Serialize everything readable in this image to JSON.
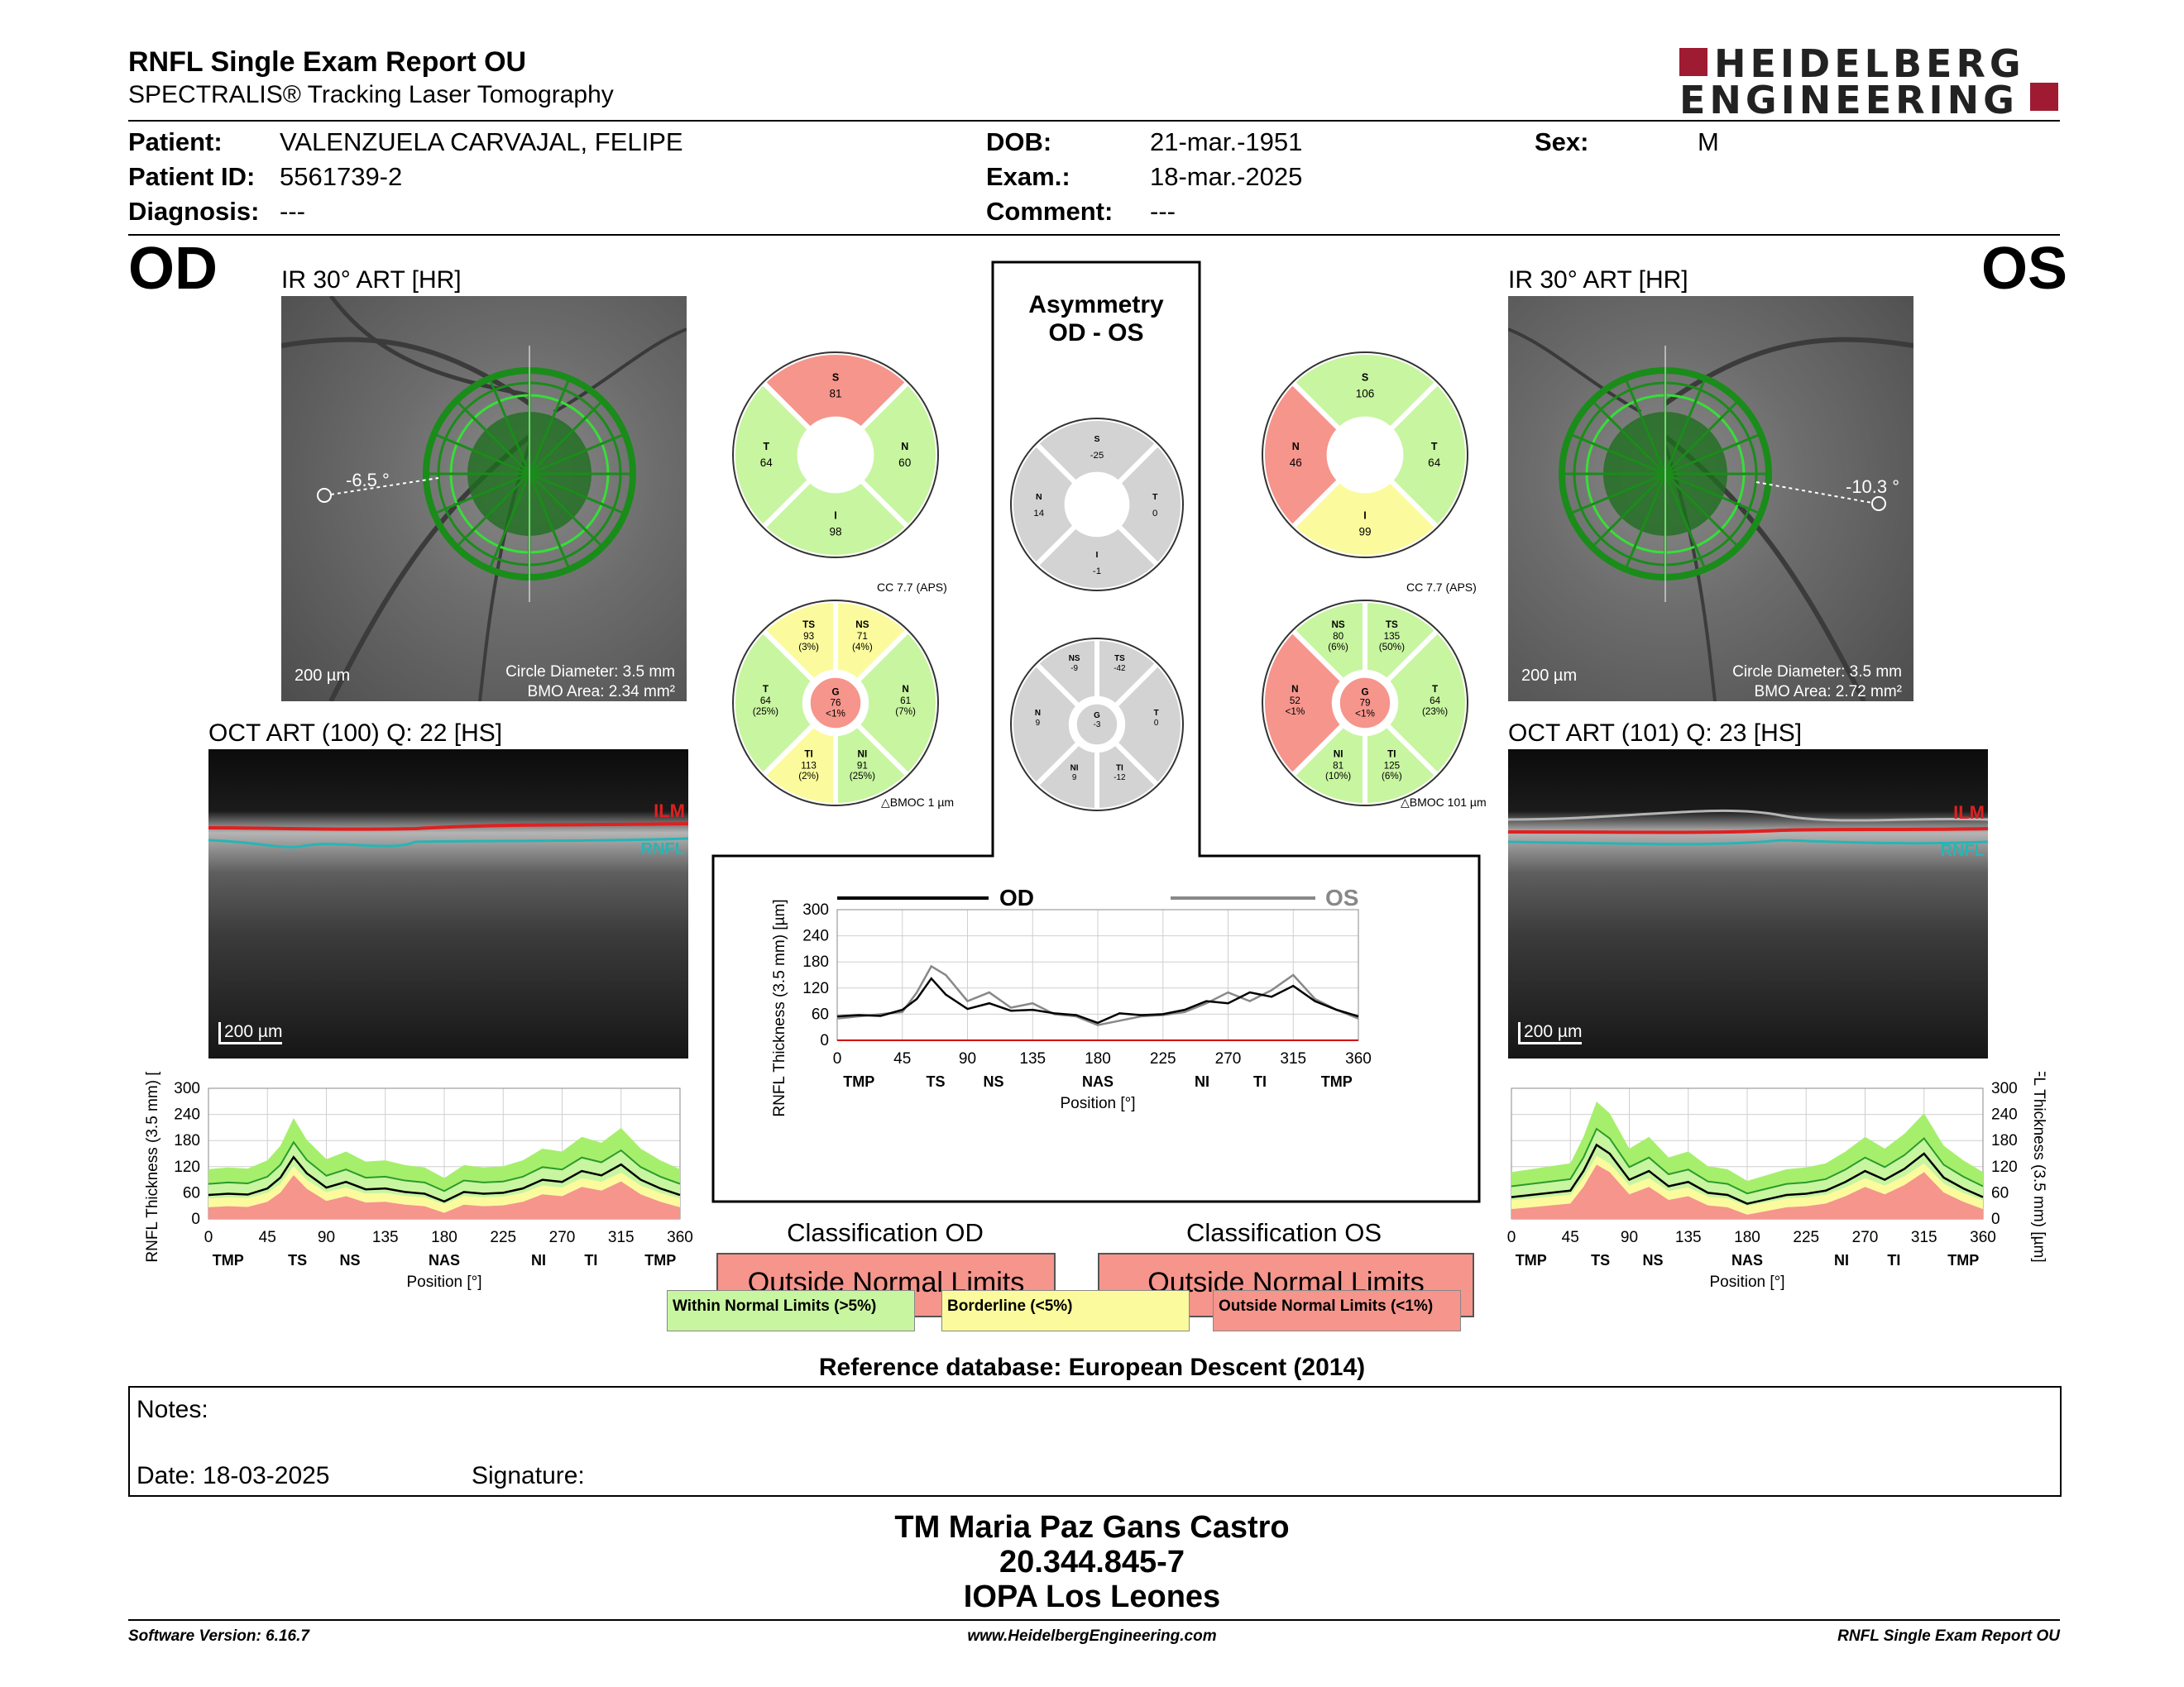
{
  "header": {
    "title": "RNFL Single Exam Report OU",
    "subtitle": "SPECTRALIS® Tracking Laser Tomography",
    "logo_line1": "HEIDELBERG",
    "logo_line2": "ENGINEERING"
  },
  "patient": {
    "patient_label": "Patient:",
    "patient_value": "VALENZUELA CARVAJAL, FELIPE",
    "id_label": "Patient ID:",
    "id_value": "5561739-2",
    "diagnosis_label": "Diagnosis:",
    "diagnosis_value": "---",
    "dob_label": "DOB:",
    "dob_value": "21-mar.-1951",
    "exam_label": "Exam.:",
    "exam_value": "18-mar.-2025",
    "comment_label": "Comment:",
    "comment_value": "---",
    "sex_label": "Sex:",
    "sex_value": "M"
  },
  "od": {
    "eye": "OD",
    "ir_title": "IR 30° ART [HR]",
    "angle": "-6.5 °",
    "scale": "200 µm",
    "circle_diameter": "Circle Diameter: 3.5 mm",
    "bmo_area": "BMO Area: 2.34 mm²",
    "oct_title": "OCT ART (100) Q: 22 [HS]",
    "ilm": "ILM",
    "rnfl": "RNFL",
    "oct_scale": "200 µm",
    "sectors4": {
      "S": "81",
      "T": "64",
      "N": "60",
      "I": "98"
    },
    "cc": "CC 7.7 (APS)",
    "sectors6": {
      "TS": {
        "v": "93",
        "p": "(3%)"
      },
      "NS": {
        "v": "71",
        "p": "(4%)"
      },
      "T": {
        "v": "64",
        "p": "(25%)"
      },
      "G": {
        "v": "76",
        "p": "<1%"
      },
      "N": {
        "v": "61",
        "p": "(7%)"
      },
      "TI": {
        "v": "113",
        "p": "(2%)"
      },
      "NI": {
        "v": "91",
        "p": "(25%)"
      }
    },
    "bmoc": "BMOC 1 µm",
    "classification_title": "Classification OD",
    "classification": "Outside Normal Limits"
  },
  "os": {
    "eye": "OS",
    "ir_title": "IR 30° ART [HR]",
    "angle": "-10.3 °",
    "scale": "200 µm",
    "circle_diameter": "Circle Diameter: 3.5 mm",
    "bmo_area": "BMO Area: 2.72 mm²",
    "oct_title": "OCT ART (101) Q: 23 [HS]",
    "ilm": "ILM",
    "rnfl": "RNFL",
    "oct_scale": "200 µm",
    "sectors4": {
      "S": "106",
      "N": "46",
      "T": "64",
      "I": "99"
    },
    "cc": "CC 7.7 (APS)",
    "sectors6": {
      "NS": {
        "v": "80",
        "p": "(6%)"
      },
      "TS": {
        "v": "135",
        "p": "(50%)"
      },
      "N": {
        "v": "52",
        "p": "<1%"
      },
      "G": {
        "v": "79",
        "p": "<1%"
      },
      "T": {
        "v": "64",
        "p": "(23%)"
      },
      "NI": {
        "v": "81",
        "p": "(10%)"
      },
      "TI": {
        "v": "125",
        "p": "(6%)"
      }
    },
    "bmoc": "BMOC 101 µm",
    "classification_title": "Classification OS",
    "classification": "Outside Normal Limits"
  },
  "asymmetry": {
    "title1": "Asymmetry",
    "title2": "OD - OS",
    "sectors4": {
      "S": "-25",
      "N": "14",
      "T": "0",
      "I": "-1"
    },
    "sectors6": {
      "NS": "-9",
      "TS": "-42",
      "N": "9",
      "G": "-3",
      "T": "0",
      "NI": "9",
      "TI": "-12"
    }
  },
  "sector_labels": {
    "S": "S",
    "T": "T",
    "N": "N",
    "I": "I",
    "TS": "TS",
    "NS": "NS",
    "G": "G",
    "TI": "TI",
    "NI": "NI"
  },
  "colors": {
    "normal": "#c8f5a0",
    "borderline": "#fbfb9d",
    "outside": "#f5958c",
    "gray": "#d3d3d3",
    "od_line": "#000000",
    "os_line": "#888888"
  },
  "chart": {
    "ylabel": "RNFL Thickness (3.5 mm) [µm]",
    "xlabel": "Position [°]",
    "yticks": [
      "0",
      "60",
      "120",
      "180",
      "240",
      "300"
    ],
    "xticks": [
      "0",
      "45",
      "90",
      "135",
      "180",
      "225",
      "270",
      "315",
      "360"
    ],
    "sector_ticks": [
      "TMP",
      "TS",
      "NS",
      "NAS",
      "NI",
      "TI",
      "TMP"
    ],
    "legend_od": "OD",
    "legend_os": "OS"
  },
  "chart_data": {
    "type": "line",
    "title": "",
    "xlabel": "Position [°]",
    "ylabel": "RNFL Thickness (3.5 mm) [µm]",
    "xlim": [
      0,
      360
    ],
    "ylim": [
      0,
      300
    ],
    "x": [
      0,
      15,
      30,
      45,
      55,
      65,
      75,
      90,
      105,
      120,
      135,
      150,
      165,
      180,
      195,
      210,
      225,
      240,
      255,
      270,
      285,
      300,
      315,
      330,
      345,
      360
    ],
    "series": [
      {
        "name": "OD",
        "values": [
          55,
          58,
          56,
          70,
          95,
          142,
          105,
          72,
          85,
          68,
          70,
          62,
          58,
          40,
          62,
          58,
          60,
          70,
          90,
          85,
          110,
          100,
          125,
          90,
          70,
          55
        ]
      },
      {
        "name": "OS",
        "values": [
          50,
          55,
          60,
          65,
          110,
          170,
          150,
          90,
          110,
          75,
          85,
          60,
          55,
          35,
          45,
          55,
          58,
          65,
          85,
          110,
          90,
          115,
          150,
          95,
          70,
          50
        ]
      }
    ]
  },
  "legend": {
    "within": "Within Normal Limits (>5%)",
    "borderline": "Borderline (<5%)",
    "outside": "Outside Normal Limits (<1%)"
  },
  "reference": "Reference database: European Descent (2014)",
  "notes": {
    "notes_label": "Notes:",
    "date_label": "Date: 18-03-2025",
    "signature_label": "Signature:"
  },
  "footer": {
    "name": "TM Maria Paz Gans Castro",
    "id": "20.344.845-7",
    "clinic": "IOPA Los Leones",
    "software": "Software Version: 6.16.7",
    "website": "www.HeidelbergEngineering.com",
    "report": "RNFL Single Exam Report OU"
  }
}
